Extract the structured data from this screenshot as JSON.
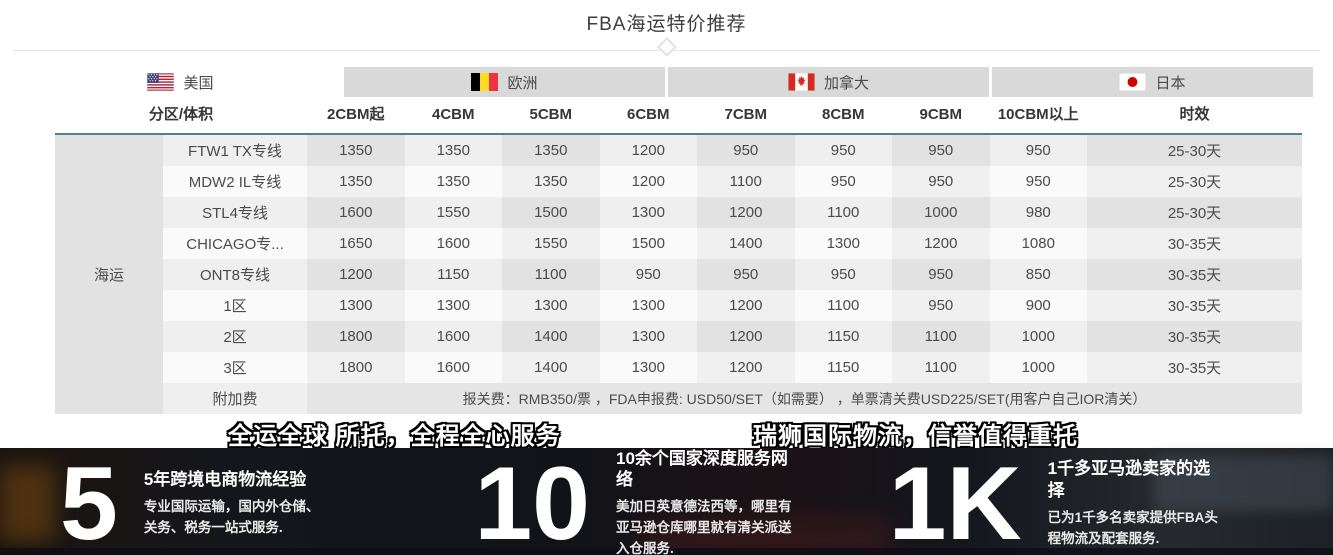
{
  "title": "FBA海运特价推荐",
  "tabs": [
    {
      "label": "美国",
      "flag_icon": "us-flag-icon",
      "active": true
    },
    {
      "label": "欧洲",
      "flag_icon": "belgium-flag-icon",
      "active": false
    },
    {
      "label": "加拿大",
      "flag_icon": "canada-flag-icon",
      "active": false
    },
    {
      "label": "日本",
      "flag_icon": "japan-flag-icon",
      "active": false
    }
  ],
  "table": {
    "headers": [
      "分区/体积",
      "2CBM起",
      "4CBM",
      "5CBM",
      "6CBM",
      "7CBM",
      "8CBM",
      "9CBM",
      "10CBM以上",
      "时效"
    ],
    "group_label": "海运",
    "rows": [
      {
        "label": "FTW1 TX专线",
        "values": [
          "1350",
          "1350",
          "1350",
          "1200",
          "950",
          "950",
          "950",
          "950"
        ],
        "time": "25-30天"
      },
      {
        "label": "MDW2 IL专线",
        "values": [
          "1350",
          "1350",
          "1350",
          "1200",
          "1100",
          "950",
          "950",
          "950"
        ],
        "time": "25-30天"
      },
      {
        "label": "STL4专线",
        "values": [
          "1600",
          "1550",
          "1500",
          "1300",
          "1200",
          "1100",
          "1000",
          "980"
        ],
        "time": "25-30天"
      },
      {
        "label": "CHICAGO专...",
        "values": [
          "1650",
          "1600",
          "1550",
          "1500",
          "1400",
          "1300",
          "1200",
          "1080"
        ],
        "time": "30-35天"
      },
      {
        "label": "ONT8专线",
        "values": [
          "1200",
          "1150",
          "1100",
          "950",
          "950",
          "950",
          "950",
          "850"
        ],
        "time": "30-35天"
      },
      {
        "label": "1区",
        "values": [
          "1300",
          "1300",
          "1300",
          "1300",
          "1200",
          "1100",
          "950",
          "900"
        ],
        "time": "30-35天"
      },
      {
        "label": "2区",
        "values": [
          "1800",
          "1600",
          "1400",
          "1300",
          "1200",
          "1150",
          "1100",
          "1000"
        ],
        "time": "30-35天"
      },
      {
        "label": "3区",
        "values": [
          "1800",
          "1600",
          "1400",
          "1300",
          "1200",
          "1150",
          "1100",
          "1000"
        ],
        "time": "30-35天"
      }
    ],
    "surcharge": {
      "label": "附加费",
      "text": "报关费：RMB350/票 ，FDA申报费: USD50/SET（如需要） ，单票清关费USD225/SET(用客户自己IOR清关）"
    }
  },
  "slogans": {
    "left": "全运全球 所托，全程全心服务",
    "right": "瑞狮国际物流，信誉值得重托"
  },
  "stats": [
    {
      "number": "5",
      "heading": "5年跨境电商物流经验",
      "body": "专业国际运输，国内外仓储、关务、税务一站式服务."
    },
    {
      "number": "10",
      "heading": "10余个国家深度服务网络",
      "body": "美加日英意德法西等，哪里有亚马逊仓库哪里就有清关派送入仓服务."
    },
    {
      "number": "1K",
      "heading": "1千多亚马逊卖家的选择",
      "body": "已为1千多名卖家提供FBA头程物流及配套服务."
    }
  ],
  "colors": {
    "header_underline": "#4f7e9c",
    "tab_inactive_bg": "#d9d9d9",
    "group_cell_bg": "#e2e2e2",
    "dark_band_bg": "#171a21",
    "title_color": "#3e3e3e"
  }
}
